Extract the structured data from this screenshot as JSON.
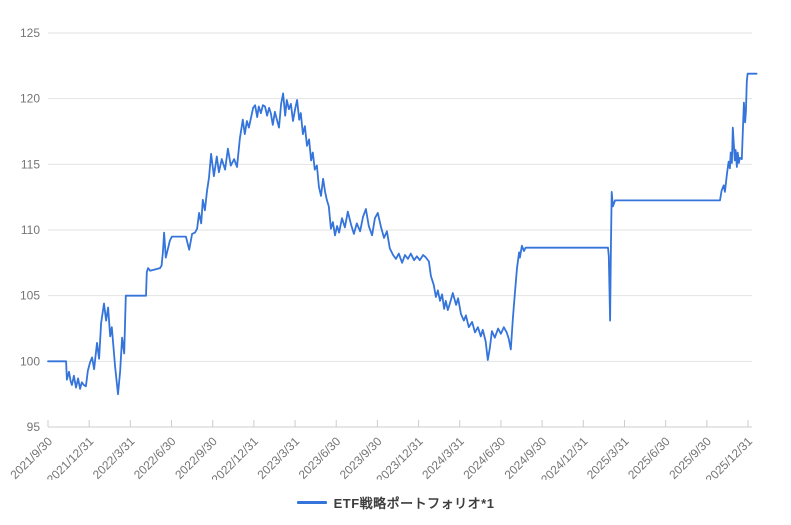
{
  "chart_data": {
    "type": "line",
    "title": "",
    "xlabel": "",
    "ylabel": "",
    "grid": true,
    "legend_position": "bottom-center",
    "background_color": "#ffffff",
    "gridline_color": "#e2e2e2",
    "axis_color": "#cccccc",
    "tick_label_color": "#757575",
    "y_axis": {
      "ticks": [
        95,
        100,
        105,
        110,
        115,
        120,
        125
      ],
      "range": [
        95,
        125
      ]
    },
    "x_axis": {
      "unit": "quarter-end dates",
      "tick_labels": [
        "2021/9/30",
        "2021/12/31",
        "2022/3/31",
        "2022/6/30",
        "2022/9/30",
        "2022/12/31",
        "2023/3/31",
        "2023/6/30",
        "2023/9/30",
        "2023/12/31",
        "2024/3/31",
        "2024/6/30",
        "2024/9/30",
        "2024/12/31",
        "2025/3/31",
        "2025/6/30",
        "2025/9/30",
        "2025/12/31"
      ],
      "range_quarters": [
        0,
        17.21
      ]
    },
    "series": [
      {
        "name": "ETF戦略ポートフォリオ*1",
        "color": "#3474db",
        "x_unit": "quarters since 2021/9/30",
        "points": [
          [
            0,
            100
          ],
          [
            0.3,
            100
          ],
          [
            0.44,
            100
          ],
          [
            0.46,
            98.6
          ],
          [
            0.51,
            99.2
          ],
          [
            0.55,
            98.5
          ],
          [
            0.58,
            98.2
          ],
          [
            0.63,
            98.9
          ],
          [
            0.68,
            98
          ],
          [
            0.73,
            98.7
          ],
          [
            0.78,
            97.9
          ],
          [
            0.82,
            98.4
          ],
          [
            0.87,
            98.2
          ],
          [
            0.92,
            98.1
          ],
          [
            0.97,
            99.3
          ],
          [
            1.02,
            99.9
          ],
          [
            1.07,
            100.3
          ],
          [
            1.12,
            99.4
          ],
          [
            1.19,
            101.4
          ],
          [
            1.24,
            100.2
          ],
          [
            1.29,
            102.9
          ],
          [
            1.36,
            104.4
          ],
          [
            1.41,
            103.1
          ],
          [
            1.46,
            104.1
          ],
          [
            1.51,
            101.9
          ],
          [
            1.55,
            102.6
          ],
          [
            1.63,
            99.6
          ],
          [
            1.7,
            97.5
          ],
          [
            1.75,
            99.2
          ],
          [
            1.8,
            101.8
          ],
          [
            1.85,
            100.6
          ],
          [
            1.89,
            105
          ],
          [
            2.38,
            105
          ],
          [
            2.4,
            106.8
          ],
          [
            2.43,
            107.1
          ],
          [
            2.48,
            106.9
          ],
          [
            2.72,
            107.1
          ],
          [
            2.76,
            107.3
          ],
          [
            2.79,
            108.3
          ],
          [
            2.82,
            109.8
          ],
          [
            2.86,
            107.9
          ],
          [
            2.96,
            109.2
          ],
          [
            3.01,
            109.5
          ],
          [
            3.35,
            109.5
          ],
          [
            3.43,
            108.5
          ],
          [
            3.5,
            109.7
          ],
          [
            3.57,
            109.8
          ],
          [
            3.62,
            110.1
          ],
          [
            3.67,
            111.3
          ],
          [
            3.72,
            110.5
          ],
          [
            3.76,
            112.3
          ],
          [
            3.81,
            111.5
          ],
          [
            3.86,
            112.9
          ],
          [
            3.91,
            114
          ],
          [
            3.96,
            115.8
          ],
          [
            4.03,
            114.1
          ],
          [
            4.1,
            115.6
          ],
          [
            4.15,
            114.4
          ],
          [
            4.22,
            115.4
          ],
          [
            4.3,
            114.6
          ],
          [
            4.37,
            116.2
          ],
          [
            4.44,
            114.9
          ],
          [
            4.52,
            115.4
          ],
          [
            4.59,
            114.8
          ],
          [
            4.66,
            117
          ],
          [
            4.73,
            118.4
          ],
          [
            4.78,
            117.3
          ],
          [
            4.83,
            118.3
          ],
          [
            4.88,
            117.8
          ],
          [
            4.98,
            119.3
          ],
          [
            5.03,
            119.5
          ],
          [
            5.08,
            118.6
          ],
          [
            5.12,
            119.4
          ],
          [
            5.17,
            118.9
          ],
          [
            5.22,
            119.5
          ],
          [
            5.27,
            119.4
          ],
          [
            5.32,
            118.7
          ],
          [
            5.37,
            119.3
          ],
          [
            5.41,
            118.9
          ],
          [
            5.46,
            118
          ],
          [
            5.51,
            119
          ],
          [
            5.56,
            118.4
          ],
          [
            5.61,
            117.8
          ],
          [
            5.66,
            119.6
          ],
          [
            5.71,
            120.4
          ],
          [
            5.76,
            118.7
          ],
          [
            5.8,
            119.9
          ],
          [
            5.85,
            119.2
          ],
          [
            5.9,
            119.6
          ],
          [
            5.95,
            118.3
          ],
          [
            6,
            119.2
          ],
          [
            6.05,
            119.9
          ],
          [
            6.1,
            118.4
          ],
          [
            6.14,
            118.9
          ],
          [
            6.19,
            117.3
          ],
          [
            6.24,
            117.9
          ],
          [
            6.29,
            116.4
          ],
          [
            6.34,
            116.9
          ],
          [
            6.39,
            115.3
          ],
          [
            6.43,
            115.9
          ],
          [
            6.48,
            114.6
          ],
          [
            6.53,
            114.9
          ],
          [
            6.58,
            113.3
          ],
          [
            6.63,
            112.6
          ],
          [
            6.68,
            113.9
          ],
          [
            6.73,
            112.9
          ],
          [
            6.77,
            112.3
          ],
          [
            6.82,
            111.8
          ],
          [
            6.87,
            110.1
          ],
          [
            6.92,
            110.6
          ],
          [
            6.97,
            109.6
          ],
          [
            7.02,
            110.3
          ],
          [
            7.07,
            109.8
          ],
          [
            7.14,
            110.9
          ],
          [
            7.21,
            110.2
          ],
          [
            7.28,
            111.4
          ],
          [
            7.36,
            110.4
          ],
          [
            7.43,
            109.7
          ],
          [
            7.5,
            110.5
          ],
          [
            7.58,
            109.9
          ],
          [
            7.65,
            111
          ],
          [
            7.72,
            111.6
          ],
          [
            7.79,
            110.3
          ],
          [
            7.87,
            109.6
          ],
          [
            7.94,
            110.9
          ],
          [
            8.01,
            111.3
          ],
          [
            8.09,
            110.2
          ],
          [
            8.16,
            109.4
          ],
          [
            8.23,
            109.9
          ],
          [
            8.3,
            108.6
          ],
          [
            8.38,
            108.1
          ],
          [
            8.45,
            107.8
          ],
          [
            8.52,
            108.2
          ],
          [
            8.6,
            107.5
          ],
          [
            8.67,
            108.1
          ],
          [
            8.74,
            107.8
          ],
          [
            8.81,
            108.2
          ],
          [
            8.89,
            107.7
          ],
          [
            8.96,
            108
          ],
          [
            9.03,
            107.7
          ],
          [
            9.11,
            108.1
          ],
          [
            9.18,
            107.9
          ],
          [
            9.25,
            107.6
          ],
          [
            9.3,
            106.5
          ],
          [
            9.37,
            105.8
          ],
          [
            9.42,
            104.9
          ],
          [
            9.47,
            105.4
          ],
          [
            9.52,
            104.6
          ],
          [
            9.57,
            105.1
          ],
          [
            9.62,
            104
          ],
          [
            9.66,
            104.6
          ],
          [
            9.71,
            103.9
          ],
          [
            9.76,
            104.4
          ],
          [
            9.83,
            105.2
          ],
          [
            9.91,
            104.3
          ],
          [
            9.96,
            104.8
          ],
          [
            10.03,
            103.6
          ],
          [
            10.1,
            103.1
          ],
          [
            10.15,
            103.5
          ],
          [
            10.22,
            102.6
          ],
          [
            10.3,
            103
          ],
          [
            10.37,
            102.2
          ],
          [
            10.44,
            102.6
          ],
          [
            10.51,
            101.9
          ],
          [
            10.56,
            102.4
          ],
          [
            10.63,
            101.5
          ],
          [
            10.68,
            100.1
          ],
          [
            10.73,
            101
          ],
          [
            10.78,
            102.3
          ],
          [
            10.85,
            101.8
          ],
          [
            10.93,
            102.5
          ],
          [
            11,
            102.1
          ],
          [
            11.07,
            102.6
          ],
          [
            11.14,
            102.2
          ],
          [
            11.19,
            101.7
          ],
          [
            11.24,
            100.9
          ],
          [
            11.29,
            103.3
          ],
          [
            11.34,
            105.2
          ],
          [
            11.39,
            107.1
          ],
          [
            11.44,
            108.3
          ],
          [
            11.46,
            107.9
          ],
          [
            11.51,
            108.8
          ],
          [
            11.56,
            108.4
          ],
          [
            11.6,
            108.65
          ],
          [
            13.6,
            108.65
          ],
          [
            13.62,
            108
          ],
          [
            13.65,
            103.1
          ],
          [
            13.67,
            108.6
          ],
          [
            13.69,
            112.9
          ],
          [
            13.72,
            111.8
          ],
          [
            13.77,
            112.25
          ],
          [
            16.32,
            112.25
          ],
          [
            16.36,
            113
          ],
          [
            16.41,
            113.4
          ],
          [
            16.44,
            112.9
          ],
          [
            16.49,
            114.3
          ],
          [
            16.53,
            115.2
          ],
          [
            16.56,
            114.7
          ],
          [
            16.58,
            115.9
          ],
          [
            16.61,
            115.1
          ],
          [
            16.63,
            117.8
          ],
          [
            16.68,
            115.3
          ],
          [
            16.7,
            116.1
          ],
          [
            16.73,
            114.8
          ],
          [
            16.75,
            115.9
          ],
          [
            16.78,
            115.1
          ],
          [
            16.8,
            115.5
          ],
          [
            16.85,
            115.4
          ],
          [
            16.9,
            119.7
          ],
          [
            16.93,
            118.2
          ],
          [
            16.95,
            119
          ],
          [
            16.97,
            121.3
          ],
          [
            16.99,
            121.9
          ],
          [
            17.21,
            121.9
          ]
        ]
      }
    ]
  },
  "legend": {
    "label": "ETF戦略ポートフォリオ*1"
  }
}
